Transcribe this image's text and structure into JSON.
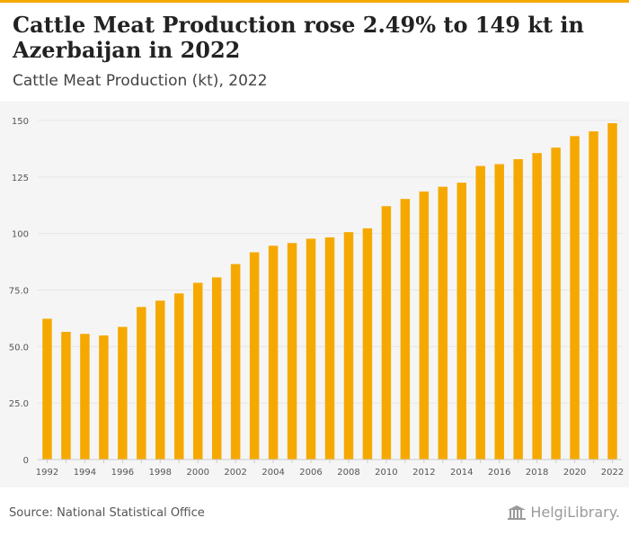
{
  "title": "Cattle Meat Production rose 2.49% to 149 kt in Azerbaijan in 2022",
  "subtitle": "Cattle Meat Production (kt), 2022",
  "source": "Source: National Statistical Office",
  "logo_text": "HelgiLibrary.",
  "colors": {
    "accent": "#f5a900",
    "bar": "#f5a900",
    "grid": "#e6e6e6",
    "tick": "#555555",
    "panel": "#f5f5f5"
  },
  "chart_data": {
    "type": "bar",
    "title": "Cattle Meat Production rose 2.49% to 149 kt in Azerbaijan in 2022",
    "subtitle": "Cattle Meat Production (kt), 2022",
    "xlabel": "",
    "ylabel": "",
    "categories": [
      "1992",
      "1993",
      "1994",
      "1995",
      "1996",
      "1997",
      "1998",
      "1999",
      "2000",
      "2001",
      "2002",
      "2003",
      "2004",
      "2005",
      "2006",
      "2007",
      "2008",
      "2009",
      "2010",
      "2011",
      "2012",
      "2013",
      "2014",
      "2015",
      "2016",
      "2017",
      "2018",
      "2019",
      "2020",
      "2021",
      "2022"
    ],
    "x_tick_labels": [
      "1992",
      "1994",
      "1996",
      "1998",
      "2000",
      "2002",
      "2004",
      "2006",
      "2008",
      "2010",
      "2012",
      "2014",
      "2016",
      "2018",
      "2020",
      "2022"
    ],
    "values": [
      62.3,
      56.5,
      55.6,
      54.9,
      58.7,
      67.5,
      70.3,
      73.5,
      78.2,
      80.6,
      86.5,
      91.7,
      94.6,
      95.8,
      97.7,
      98.3,
      100.6,
      102.3,
      112.1,
      115.3,
      118.6,
      120.7,
      122.5,
      129.9,
      130.7,
      132.9,
      135.6,
      138.0,
      143.1,
      145.2,
      148.8
    ],
    "y_ticks": [
      0,
      25.0,
      50.0,
      75.0,
      100,
      125,
      150
    ],
    "y_tick_labels": [
      "0",
      "25.0",
      "50.0",
      "75.0",
      "100",
      "125",
      "150"
    ],
    "ylim": [
      0,
      150
    ],
    "grid": true,
    "legend": "none"
  }
}
